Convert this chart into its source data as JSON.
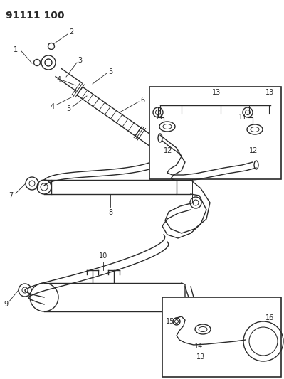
{
  "title": "91111 100",
  "bg_color": "#ffffff",
  "line_color": "#2a2a2a",
  "title_fontsize": 10,
  "label_fontsize": 7,
  "fig_width": 3.99,
  "fig_height": 5.33,
  "dpi": 100
}
